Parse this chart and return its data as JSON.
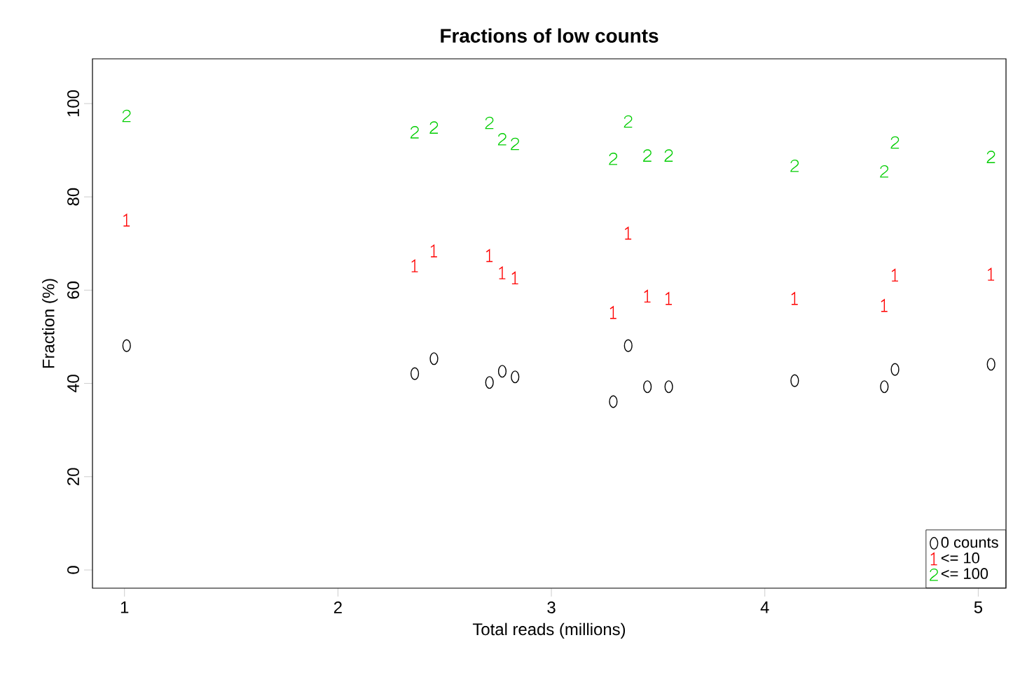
{
  "chart_data": {
    "type": "scatter",
    "title": "Fractions of low counts",
    "xlabel": "Total reads (millions)",
    "ylabel": "Fraction (%)",
    "x": [
      1.01,
      2.36,
      2.45,
      2.71,
      2.77,
      2.83,
      3.36,
      3.29,
      3.45,
      3.55,
      4.14,
      4.61,
      4.56,
      5.06
    ],
    "series": [
      {
        "name": "0 counts",
        "color": "#000000",
        "values": [
          48.1,
          42.1,
          45.3,
          40.2,
          42.6,
          41.4,
          48.1,
          36.1,
          39.3,
          39.3,
          40.6,
          43.0,
          39.3,
          44.1
        ]
      },
      {
        "name": "<= 10",
        "color": "#ff0000",
        "values": [
          75.0,
          65.2,
          68.4,
          67.4,
          63.7,
          62.6,
          72.2,
          55.2,
          58.7,
          58.2,
          58.2,
          63.2,
          56.7,
          63.4
        ]
      },
      {
        "name": "<= 100",
        "color": "#00cd00",
        "values": [
          97.4,
          93.9,
          94.9,
          95.9,
          92.4,
          91.4,
          96.2,
          88.2,
          88.9,
          88.9,
          86.7,
          91.7,
          85.5,
          88.6
        ]
      }
    ],
    "xlim": [
      0.85,
      5.13
    ],
    "ylim": [
      -3.9,
      109.6
    ],
    "xticks": [
      1,
      2,
      3,
      4,
      5
    ],
    "yticks": [
      0,
      20,
      40,
      60,
      80,
      100
    ],
    "grid": false,
    "legend": "bottom right"
  }
}
